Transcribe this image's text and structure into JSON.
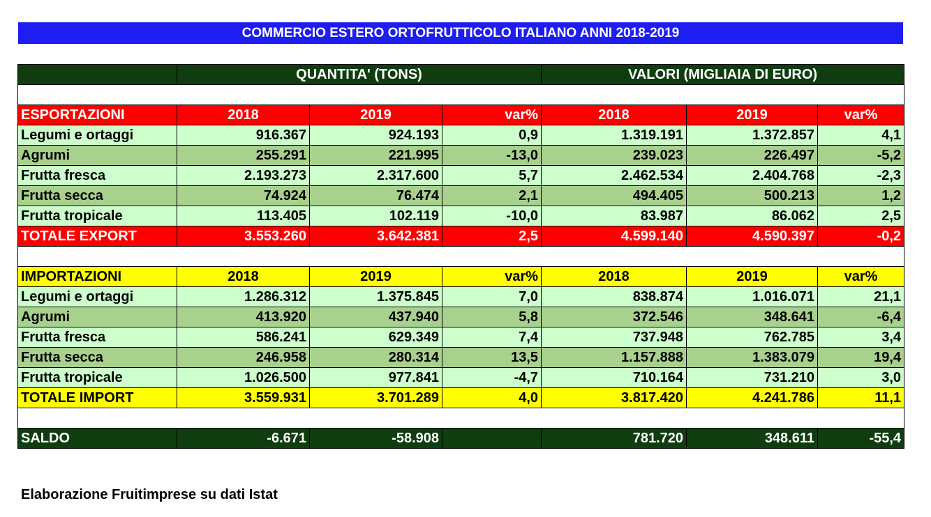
{
  "title": "COMMERCIO ESTERO ORTOFRUTTICOLO ITALIANO ANNI 2018-2019",
  "header": {
    "quantity": "QUANTITA' (TONS)",
    "values": "VALORI (MIGLIAIA DI EURO)"
  },
  "export": {
    "label": "ESPORTAZIONI",
    "cols": [
      "2018",
      "2019",
      "var%",
      "2018",
      "2019",
      "var%"
    ],
    "rows": [
      [
        "Legumi e ortaggi",
        "916.367",
        "924.193",
        "0,9",
        "1.319.191",
        "1.372.857",
        "4,1"
      ],
      [
        "Agrumi",
        "255.291",
        "221.995",
        "-13,0",
        "239.023",
        "226.497",
        "-5,2"
      ],
      [
        "Frutta fresca",
        "2.193.273",
        "2.317.600",
        "5,7",
        "2.462.534",
        "2.404.768",
        "-2,3"
      ],
      [
        "Frutta secca",
        "74.924",
        "76.474",
        "2,1",
        "494.405",
        "500.213",
        "1,2"
      ],
      [
        "Frutta tropicale",
        "113.405",
        "102.119",
        "-10,0",
        "83.987",
        "86.062",
        "2,5"
      ]
    ],
    "total": [
      "TOTALE EXPORT",
      "3.553.260",
      "3.642.381",
      "2,5",
      "4.599.140",
      "4.590.397",
      "-0,2"
    ]
  },
  "import": {
    "label": "IMPORTAZIONI",
    "cols": [
      "2018",
      "2019",
      "var%",
      "2018",
      "2019",
      "var%"
    ],
    "rows": [
      [
        "Legumi e ortaggi",
        "1.286.312",
        "1.375.845",
        "7,0",
        "838.874",
        "1.016.071",
        "21,1"
      ],
      [
        "Agrumi",
        "413.920",
        "437.940",
        "5,8",
        "372.546",
        "348.641",
        "-6,4"
      ],
      [
        "Frutta fresca",
        "586.241",
        "629.349",
        "7,4",
        "737.948",
        "762.785",
        "3,4"
      ],
      [
        "Frutta secca",
        "246.958",
        "280.314",
        "13,5",
        "1.157.888",
        "1.383.079",
        "19,4"
      ],
      [
        "Frutta tropicale",
        "1.026.500",
        "977.841",
        "-4,7",
        "710.164",
        "731.210",
        "3,0"
      ]
    ],
    "total": [
      "TOTALE IMPORT",
      "3.559.931",
      "3.701.289",
      "4,0",
      "3.817.420",
      "4.241.786",
      "11,1"
    ]
  },
  "saldo": [
    "SALDO",
    "-6.671",
    "-58.908",
    "",
    "781.720",
    "348.611",
    "-55,4"
  ],
  "footer": "Elaborazione Fruitimprese su dati Istat"
}
